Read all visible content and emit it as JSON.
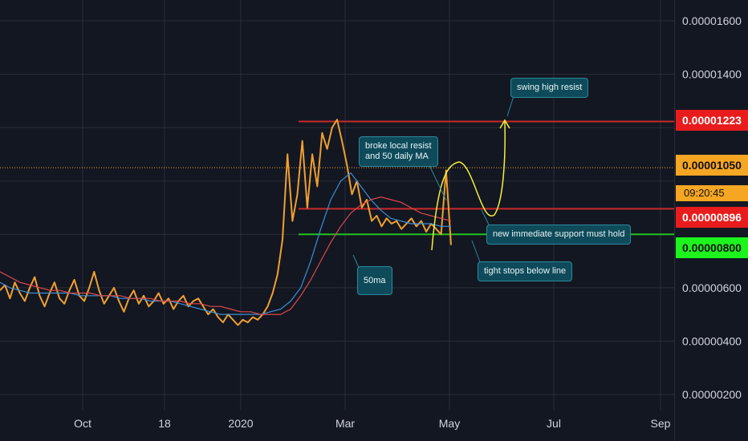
{
  "chart_data": {
    "type": "line",
    "y_axis": {
      "ticks": [
        "0.00001600",
        "0.00001400",
        "0.00001223",
        "0.00001050",
        "0.00000896",
        "0.00000800",
        "0.00000600",
        "0.00000400",
        "0.00000200"
      ],
      "ylim": [
        1.5e-06,
        1.7e-06
      ],
      "grid": true
    },
    "x_axis": {
      "ticks": [
        "Oct",
        "18",
        "2020",
        "Mar",
        "May",
        "Jul",
        "Sep"
      ],
      "grid": true
    },
    "series": [
      {
        "role": "price",
        "color": "#f0a030",
        "values": [
          5.9e-06,
          6.1e-06,
          5.6e-06,
          6.2e-06,
          5.8e-06,
          5.5e-06,
          6e-06,
          6.4e-06,
          5.7e-06,
          5.3e-06,
          5.8e-06,
          6.2e-06,
          5.6e-06,
          5.4e-06,
          5.9e-06,
          6.3e-06,
          5.7e-06,
          5.5e-06,
          6e-06,
          6.6e-06,
          5.9e-06,
          5.4e-06,
          5.7e-06,
          6e-06,
          5.5e-06,
          5.1e-06,
          5.6e-06,
          5.9e-06,
          5.4e-06,
          5.7e-06,
          5.3e-06,
          5.5e-06,
          5.8e-06,
          5.4e-06,
          5.6e-06,
          5.2e-06,
          5.5e-06,
          5.7e-06,
          5.3e-06,
          5.5e-06,
          5.6e-06,
          5.3e-06,
          5e-06,
          5.2e-06,
          4.9e-06,
          4.7e-06,
          5e-06,
          4.8e-06,
          4.6e-06,
          4.8e-06,
          4.7e-06,
          4.9e-06,
          4.8e-06,
          5e-06,
          5.3e-06,
          5.8e-06,
          6.5e-06,
          7.8e-06,
          1.1e-05,
          8.5e-06,
          9.5e-06,
          1.15e-05,
          9e-06,
          1.1e-05,
          9.8e-06,
          1.18e-05,
          1.12e-05,
          1.2e-05,
          1.23e-05,
          1.15e-05,
          1.06e-05,
          9.5e-06,
          1e-05,
          9e-06,
          9.3e-06,
          8.5e-06,
          8.7e-06,
          8.3e-06,
          8.6e-06,
          8.4e-06,
          8.5e-06,
          8.2e-06,
          8.4e-06,
          8.6e-06,
          8.3e-06,
          8.5e-06,
          8.1e-06,
          8.4e-06,
          8.2e-06,
          8e-06,
          1.04e-05,
          7.6e-06
        ]
      },
      {
        "role": "50ma",
        "color": "#3a8fd6",
        "values": [
          6.2e-06,
          6e-06,
          5.9e-06,
          5.8e-06,
          5.8e-06,
          5.8e-06,
          5.8e-06,
          5.8e-06,
          5.7e-06,
          5.7e-06,
          5.7e-06,
          5.7e-06,
          5.6e-06,
          5.6e-06,
          5.6e-06,
          5.5e-06,
          5.5e-06,
          5.5e-06,
          5.4e-06,
          5.3e-06,
          5.2e-06,
          5.1e-06,
          5e-06,
          5e-06,
          5e-06,
          5e-06,
          5e-06,
          5.1e-06,
          5.2e-06,
          5.5e-06,
          6e-06,
          7e-06,
          8.2e-06,
          9.3e-06,
          1e-05,
          1.03e-05,
          9.8e-06,
          9.3e-06,
          8.9e-06,
          8.6e-06,
          8.5e-06,
          8.4e-06,
          8.4e-06,
          8.4e-06,
          8.3e-06,
          8.3e-06
        ]
      },
      {
        "role": "long-ma",
        "color": "#e0484d",
        "values": [
          6.6e-06,
          6.4e-06,
          6.2e-06,
          6.1e-06,
          6e-06,
          5.9e-06,
          5.9e-06,
          5.8e-06,
          5.8e-06,
          5.8e-06,
          5.7e-06,
          5.7e-06,
          5.7e-06,
          5.6e-06,
          5.6e-06,
          5.6e-06,
          5.5e-06,
          5.5e-06,
          5.5e-06,
          5.4e-06,
          5.4e-06,
          5.3e-06,
          5.3e-06,
          5.2e-06,
          5.1e-06,
          5.1e-06,
          5e-06,
          5e-06,
          5e-06,
          5.2e-06,
          5.7e-06,
          6.3e-06,
          7e-06,
          7.7e-06,
          8.3e-06,
          8.8e-06,
          9.1e-06,
          9.3e-06,
          9.4e-06,
          9.3e-06,
          9.2e-06,
          9e-06,
          8.8e-06,
          8.7e-06,
          8.6e-06,
          8.5e-06
        ]
      }
    ],
    "horizontal_levels": [
      {
        "value": 1.223e-05,
        "color": "#c92a2a",
        "label": "0.00001223"
      },
      {
        "value": 8.96e-06,
        "color": "#c92a2a",
        "label": "0.00000896"
      },
      {
        "value": 8e-06,
        "color": "#22c41e",
        "label": "0.00000800"
      },
      {
        "value": 1.05e-05,
        "color": "#f5a623",
        "label": "0.00001050",
        "dotted": true
      }
    ],
    "countdown": "09:20:45",
    "annotations": [
      "swing high resist",
      "broke local resist\nand 50 daily MA",
      "new immediate support must hold",
      "tight stops below line",
      "50ma"
    ]
  },
  "colors": {
    "background": "#131722",
    "grid": "#2a2e39",
    "resistance": "#c92a2a",
    "support": "#22c41e",
    "current": "#f5a623",
    "projection": "#f5f03a",
    "callout": "#0f4a5a"
  }
}
